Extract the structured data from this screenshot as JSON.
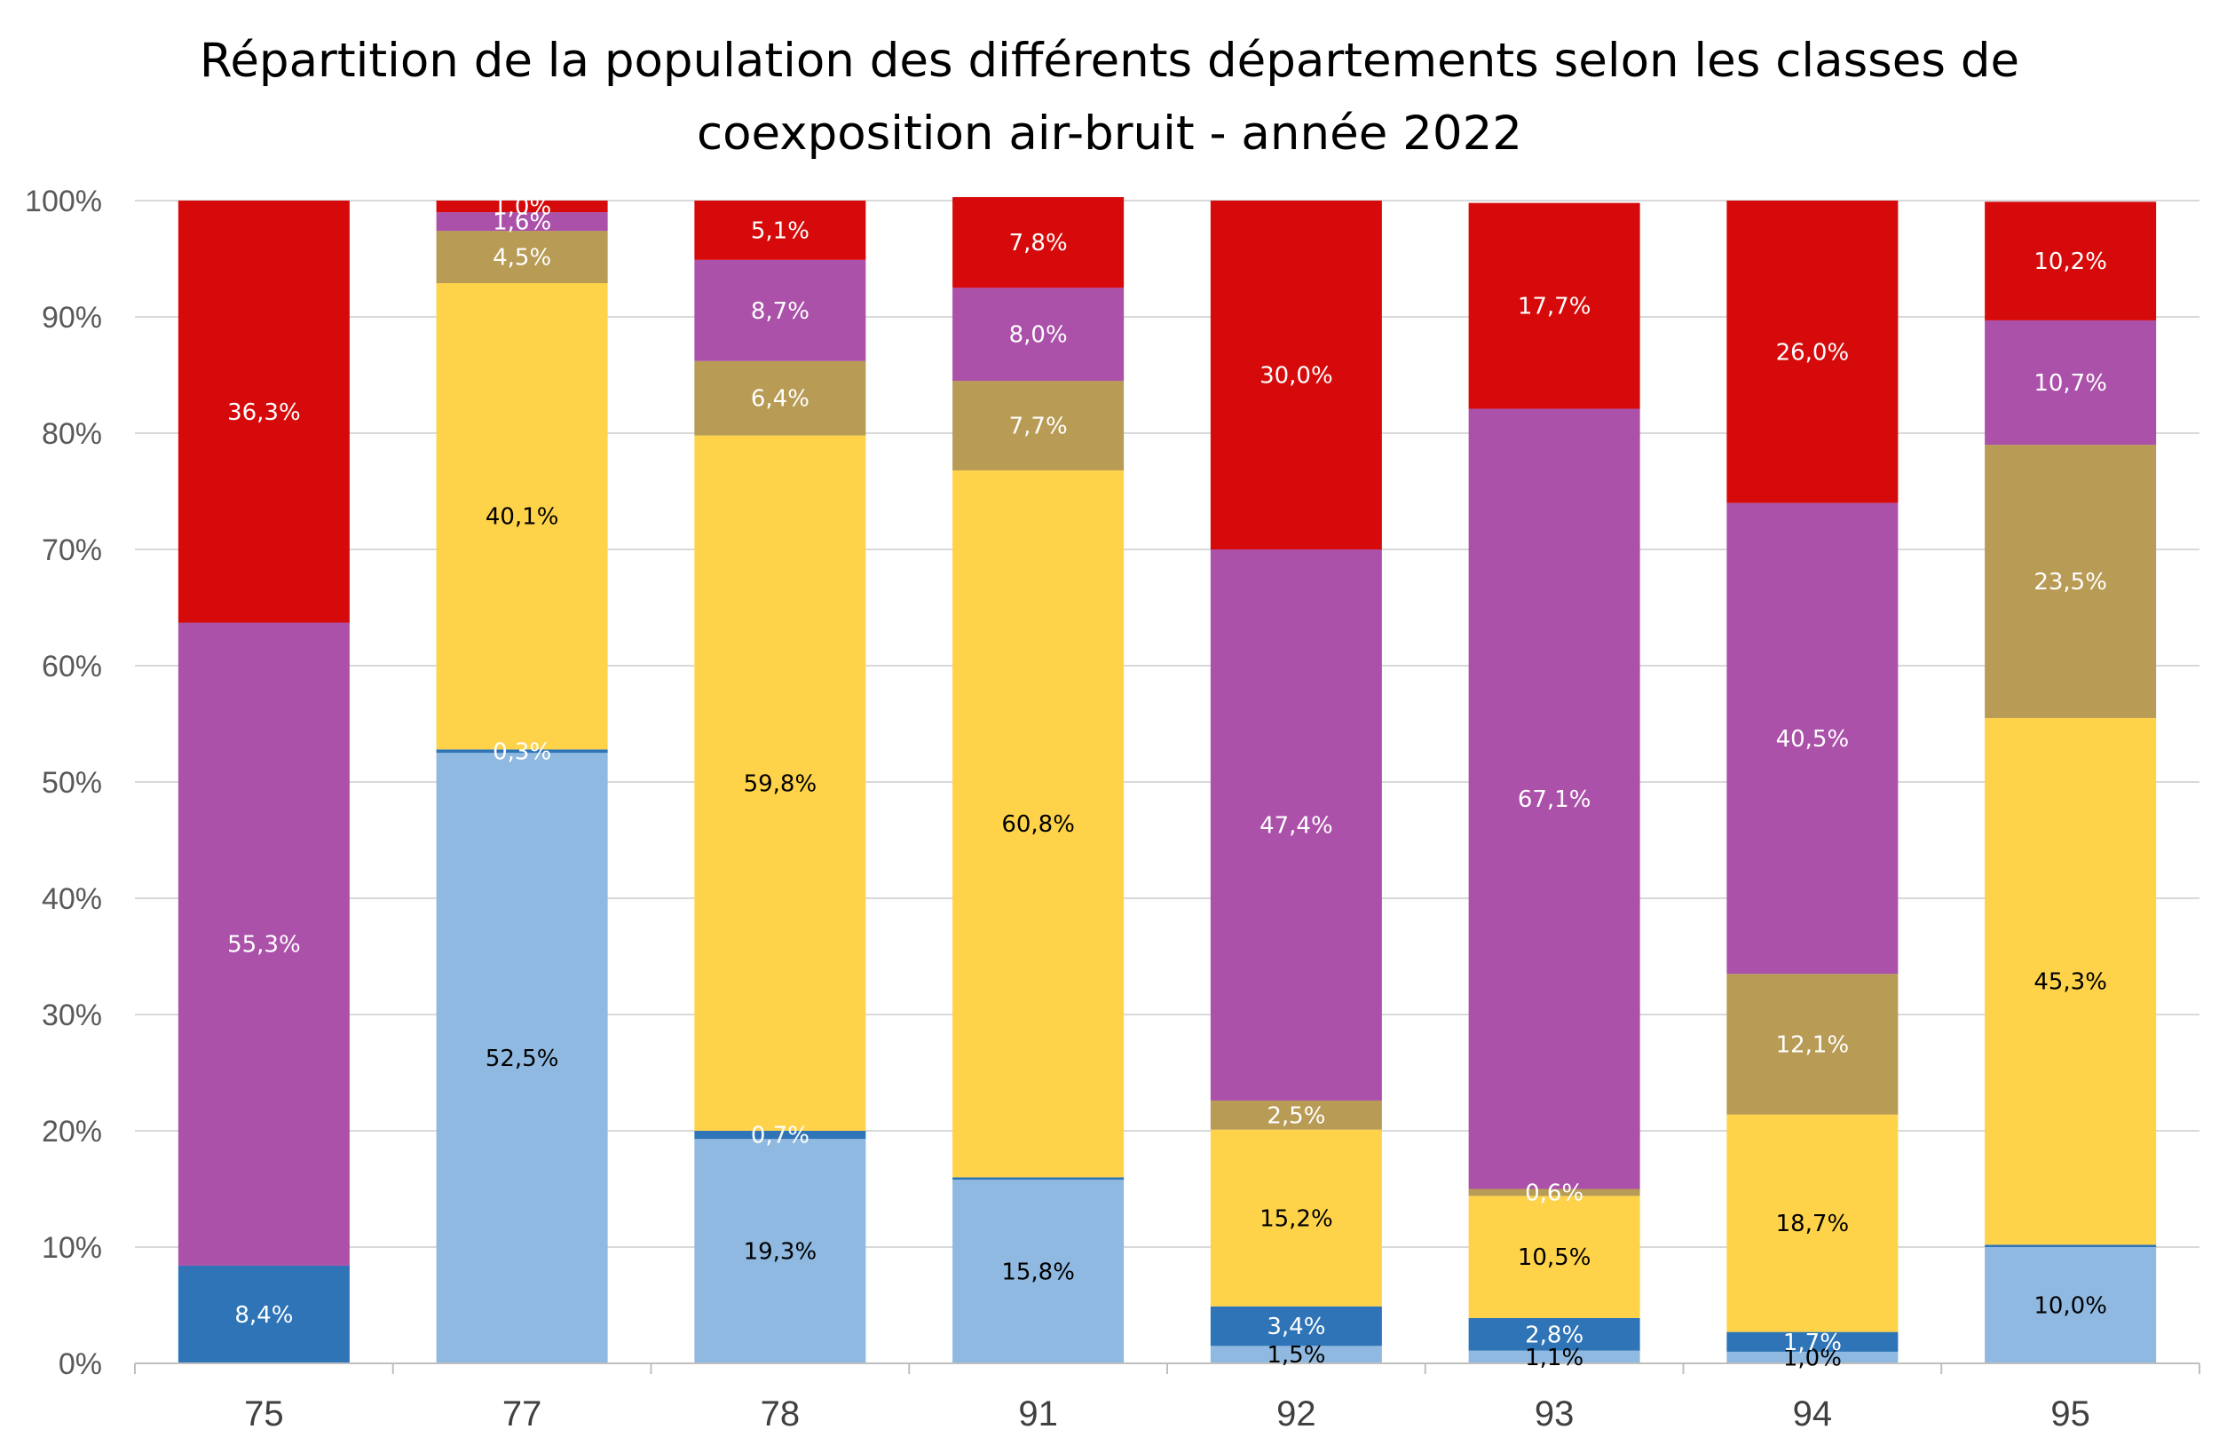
{
  "chart_data": {
    "type": "bar",
    "stacked": true,
    "normalized": true,
    "title_line1": "Répartition de la population des différents départements selon les classes de",
    "title_line2": "coexposition air-bruit - année 2022",
    "categories": [
      "75",
      "77",
      "78",
      "91",
      "92",
      "93",
      "94",
      "95"
    ],
    "ylim": [
      0,
      100
    ],
    "yticks": [
      0,
      10,
      20,
      30,
      40,
      50,
      60,
      70,
      80,
      90,
      100
    ],
    "ytick_labels": [
      "0%",
      "10%",
      "20%",
      "30%",
      "40%",
      "50%",
      "60%",
      "70%",
      "80%",
      "90%",
      "100%"
    ],
    "grid": true,
    "legend": "none",
    "series": [
      {
        "color": "#8fb9e0",
        "label_color": "#000000",
        "values": [
          0,
          52.5,
          19.3,
          15.8,
          1.5,
          1.1,
          1.0,
          10.0
        ],
        "labels": [
          "",
          "52,5%",
          "19,3%",
          "15,8%",
          "1,5%",
          "1,1%",
          "1,0%",
          "10,0%"
        ]
      },
      {
        "color": "#2e74b6",
        "label_color": "#ffffff",
        "values": [
          8.4,
          0.3,
          0.7,
          0.2,
          3.4,
          2.8,
          1.7,
          0.2
        ],
        "labels": [
          "8,4%",
          "0,3%",
          "0,7%",
          "",
          "3,4%",
          "2,8%",
          "1,7%",
          ""
        ]
      },
      {
        "color": "#fed34a",
        "label_color": "#000000",
        "values": [
          0,
          40.1,
          59.8,
          60.8,
          15.2,
          10.5,
          18.7,
          45.3
        ],
        "labels": [
          "",
          "40,1%",
          "59,8%",
          "60,8%",
          "15,2%",
          "10,5%",
          "18,7%",
          "45,3%"
        ]
      },
      {
        "color": "#b89b55",
        "label_color": "#ffffff",
        "values": [
          0,
          4.5,
          6.4,
          7.7,
          2.5,
          0.6,
          12.1,
          23.5
        ],
        "labels": [
          "",
          "4,5%",
          "6,4%",
          "7,7%",
          "2,5%",
          "0,6%",
          "12,1%",
          "23,5%"
        ]
      },
      {
        "color": "#ab51a9",
        "label_color": "#ffffff",
        "values": [
          55.3,
          1.6,
          8.7,
          8.0,
          47.4,
          67.1,
          40.5,
          10.7
        ],
        "labels": [
          "55,3%",
          "1,6%",
          "8,7%",
          "8,0%",
          "47,4%",
          "67,1%",
          "40,5%",
          "10,7%"
        ]
      },
      {
        "color": "#d60a0a",
        "label_color": "#ffffff",
        "values": [
          36.3,
          1.0,
          5.1,
          7.8,
          30.0,
          17.7,
          26.0,
          10.2
        ],
        "labels": [
          "36,3%",
          "1,0%",
          "5,1%",
          "7,8%",
          "30,0%",
          "17,7%",
          "26,0%",
          "10,2%"
        ]
      }
    ]
  }
}
